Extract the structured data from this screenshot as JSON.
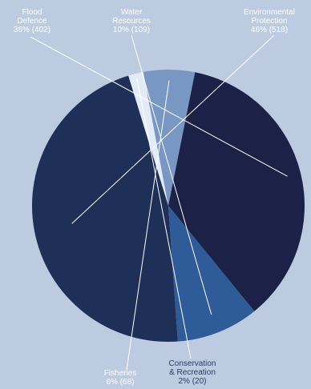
{
  "chart_data": {
    "type": "pie",
    "slices": [
      {
        "key": "environmental",
        "name_lines": [
          "Environmental",
          "Protection"
        ],
        "pct_text": "46% (518)",
        "percent": 46,
        "value": 518,
        "color": "#1e3058"
      },
      {
        "key": "conservation",
        "name_lines": [
          "Conservation",
          "& Recreation"
        ],
        "pct_text": "2% (20)",
        "percent": 2,
        "value": 20,
        "color": "#e3ecf6"
      },
      {
        "key": "fisheries",
        "name_lines": [
          "Fisheries"
        ],
        "pct_text": "6% (68)",
        "percent": 6,
        "value": 68,
        "color": "#7897c3"
      },
      {
        "key": "flood",
        "name_lines": [
          "Flood",
          "Defence"
        ],
        "pct_text": "36% (402)",
        "percent": 36,
        "value": 402,
        "color": "#1c2247"
      },
      {
        "key": "water",
        "name_lines": [
          "Water",
          "Resources"
        ],
        "pct_text": "10% (109)",
        "percent": 10,
        "value": 109,
        "color": "#2f5b98"
      }
    ],
    "background": "#bccbe0",
    "leader_color": "#ffffff"
  }
}
